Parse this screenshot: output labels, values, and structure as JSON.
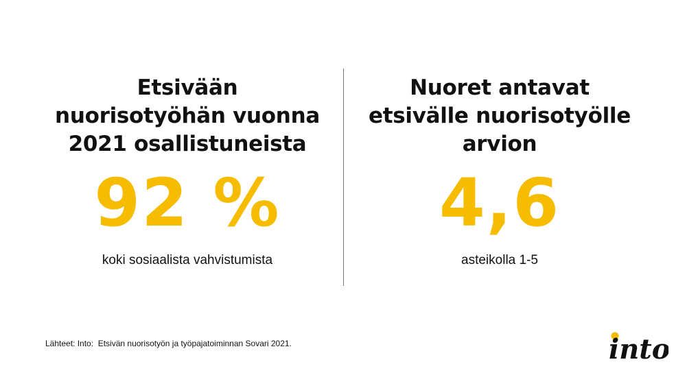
{
  "left": {
    "heading": "Etsivään\nnuorisotyöhän vuonna\n2021 osallistuneista",
    "value": "92 %",
    "caption": "koki sosiaalista vahvistumista"
  },
  "right": {
    "heading": "Nuoret antavat\netsivälle nuorisotyölle\narvion",
    "value": "4,6",
    "caption": "asteikolla 1-5"
  },
  "source": "Lähteet: Into:  Etsivän nuorisotyön ja työpajatoiminnan Sovari 2021.",
  "logo": {
    "text": "into"
  },
  "colors": {
    "accent": "#F5BC00",
    "text": "#111111",
    "divider": "#777777"
  }
}
